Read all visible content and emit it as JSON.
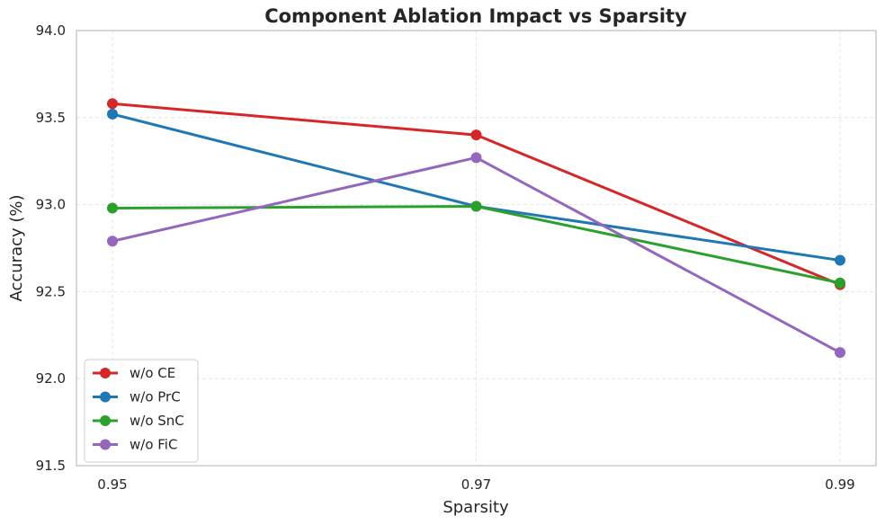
{
  "chart_data": {
    "type": "line",
    "title": "Component Ablation Impact vs Sparsity",
    "xlabel": "Sparsity",
    "ylabel": "Accuracy (%)",
    "x": [
      "0.95",
      "0.97",
      "0.99"
    ],
    "ylim": [
      91.5,
      94.0
    ],
    "yticks": [
      "91.5",
      "92.0",
      "92.5",
      "93.0",
      "93.5",
      "94.0"
    ],
    "grid": true,
    "legend_position": "bottom-left",
    "series": [
      {
        "name": "w/o CE",
        "color": "#d62728",
        "values": [
          93.58,
          93.4,
          92.54
        ]
      },
      {
        "name": "w/o PrC",
        "color": "#1f77b4",
        "values": [
          93.52,
          92.99,
          92.68
        ]
      },
      {
        "name": "w/o SnC",
        "color": "#2ca02c",
        "values": [
          92.98,
          92.99,
          92.55
        ]
      },
      {
        "name": "w/o FiC",
        "color": "#9467bd",
        "values": [
          92.79,
          93.27,
          92.15
        ]
      }
    ]
  }
}
